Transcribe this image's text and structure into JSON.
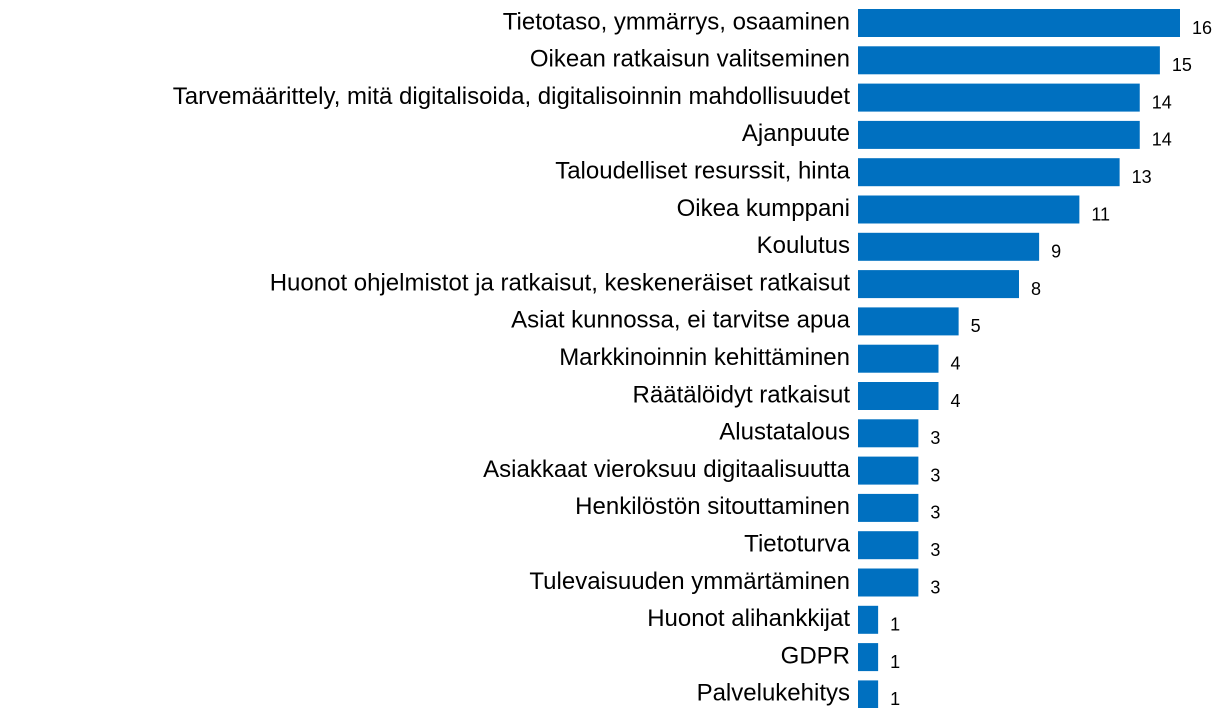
{
  "chart_data": {
    "type": "bar",
    "orientation": "horizontal",
    "categories": [
      "Tietotaso, ymmärrys, osaaminen",
      "Oikean ratkaisun valitseminen",
      "Tarvemäärittely, mitä digitalisoida, digitalisoinnin mahdollisuudet",
      "Ajanpuute",
      "Taloudelliset resurssit, hinta",
      "Oikea kumppani",
      "Koulutus",
      "Huonot ohjelmistot ja ratkaisut, keskeneräiset ratkaisut",
      "Asiat kunnossa, ei tarvitse apua",
      "Markkinoinnin kehittäminen",
      "Räätälöidyt ratkaisut",
      "Alustatalous",
      "Asiakkaat vieroksuu digitaalisuutta",
      "Henkilöstön sitouttaminen",
      "Tietoturva",
      "Tulevaisuuden ymmärtäminen",
      "Huonot alihankkijat",
      "GDPR",
      "Palvelukehitys"
    ],
    "values": [
      16,
      15,
      14,
      14,
      13,
      11,
      9,
      8,
      5,
      4,
      4,
      3,
      3,
      3,
      3,
      3,
      1,
      1,
      1
    ],
    "color": "#0070c0",
    "xlim": [
      0,
      16
    ]
  }
}
